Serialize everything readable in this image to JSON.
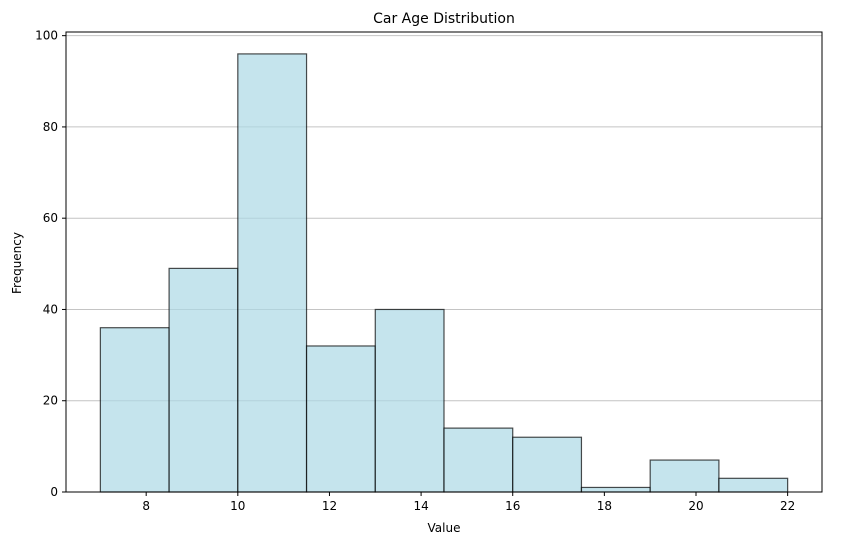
{
  "chart_data": {
    "type": "bar",
    "title": "Car Age Distribution",
    "xlabel": "Value",
    "ylabel": "Frequency",
    "bins": [
      {
        "x0": 7.0,
        "x1": 8.5,
        "count": 36
      },
      {
        "x0": 8.5,
        "x1": 10.0,
        "count": 49
      },
      {
        "x0": 10.0,
        "x1": 11.5,
        "count": 96
      },
      {
        "x0": 11.5,
        "x1": 13.0,
        "count": 32
      },
      {
        "x0": 13.0,
        "x1": 14.5,
        "count": 40
      },
      {
        "x0": 14.5,
        "x1": 16.0,
        "count": 14
      },
      {
        "x0": 16.0,
        "x1": 17.5,
        "count": 12
      },
      {
        "x0": 17.5,
        "x1": 19.0,
        "count": 1
      },
      {
        "x0": 19.0,
        "x1": 20.5,
        "count": 7
      },
      {
        "x0": 20.5,
        "x1": 22.0,
        "count": 3
      }
    ],
    "xlim": [
      6.25,
      22.75
    ],
    "ylim": [
      0,
      100.8
    ],
    "xticks": [
      8,
      10,
      12,
      14,
      16,
      18,
      20,
      22
    ],
    "yticks": [
      0,
      20,
      40,
      60,
      80,
      100
    ],
    "grid": "y",
    "bar_color": "#add8e6",
    "edge_color": "#000000"
  }
}
